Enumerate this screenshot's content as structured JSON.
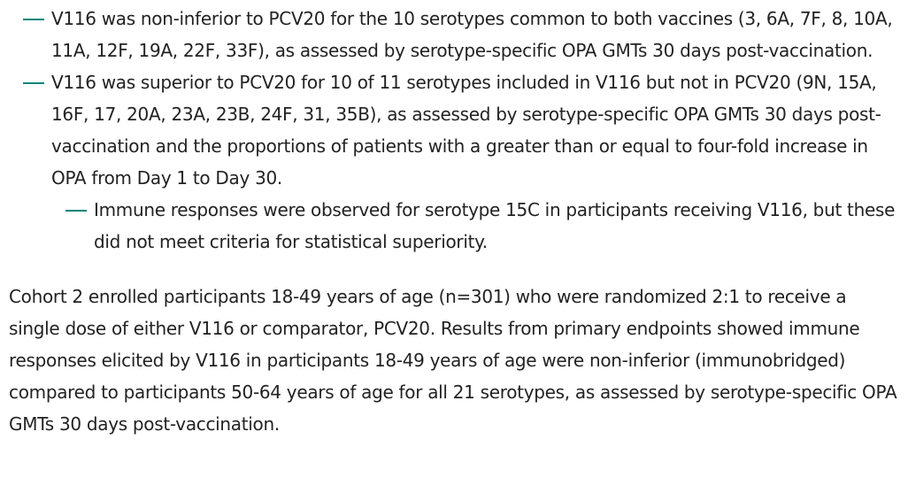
{
  "list": [
    {
      "text": "V116 was non-inferior to PCV20 for the 10 serotypes common to both vaccines (3, 6A, 7F, 8, 10A, 11A, 12F, 19A, 22F, 33F), as assessed by serotype-specific OPA GMTs 30 days post-vaccination."
    },
    {
      "text": "V116 was superior to PCV20 for 10 of 11 serotypes included in V116 but not in PCV20 (9N, 15A, 16F, 17, 20A, 23A, 23B, 24F, 31, 35B), as assessed by serotype-specific OPA GMTs 30 days post-vaccination and the proportions of patients with a greater than or equal to four-fold increase in OPA from Day 1 to Day 30.",
      "sub": [
        "Immune responses were observed for serotype 15C in participants receiving V116, but these did not meet criteria for statistical superiority."
      ]
    }
  ],
  "paragraph": "Cohort 2 enrolled participants 18-49 years of age (n=301) who were randomized 2:1 to receive a single dose of either V116 or comparator, PCV20. Results from primary endpoints showed immune responses elicited by V116 in participants 18-49 years of age were non-inferior (immunobridged) compared to participants 50-64 years of age for all 21 serotypes, as assessed by serotype-specific OPA GMTs 30 days post-vaccination."
}
